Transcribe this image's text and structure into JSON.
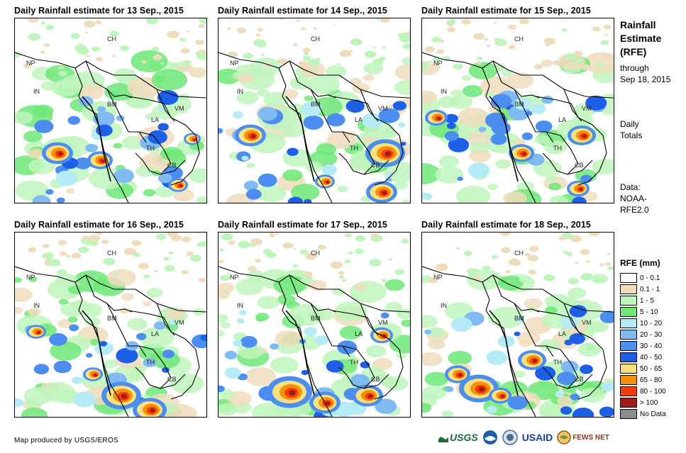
{
  "panels": [
    {
      "title": "Daily Rainfall estimate for 13 Sep., 2015"
    },
    {
      "title": "Daily Rainfall estimate for 14 Sep., 2015"
    },
    {
      "title": "Daily Rainfall estimate for 15 Sep., 2015"
    },
    {
      "title": "Daily Rainfall estimate for 16 Sep., 2015"
    },
    {
      "title": "Daily Rainfall estimate for 17 Sep., 2015"
    },
    {
      "title": "Daily Rainfall estimate for 18 Sep., 2015"
    }
  ],
  "country_labels": [
    "CH",
    "NP",
    "IN",
    "BM",
    "LA",
    "VM",
    "TH",
    "CB"
  ],
  "side": {
    "title_line1": "Rainfall",
    "title_line2": "Estimate",
    "title_line3": "(RFE)",
    "through_line1": "through",
    "through_line2": "Sep 18, 2015",
    "totals_line1": "Daily",
    "totals_line2": "Totals",
    "data_line1": "Data:",
    "data_line2": "NOAA-",
    "data_line3": "RFE2.0"
  },
  "legend": {
    "title": "RFE (mm)",
    "items": [
      {
        "label": "0 - 0.1",
        "color": "#ffffff"
      },
      {
        "label": "0.1 - 1",
        "color": "#eedcbc"
      },
      {
        "label": "1 - 5",
        "color": "#bff5bc"
      },
      {
        "label": "5 - 10",
        "color": "#6fe878"
      },
      {
        "label": "10 - 20",
        "color": "#b5ebf7"
      },
      {
        "label": "20 - 30",
        "color": "#7fbbf2"
      },
      {
        "label": "30 - 40",
        "color": "#4c8ef0"
      },
      {
        "label": "40 - 50",
        "color": "#1d5fe6"
      },
      {
        "label": "50 - 65",
        "color": "#f9e27d"
      },
      {
        "label": "65 - 80",
        "color": "#f5900b"
      },
      {
        "label": "80 - 100",
        "color": "#f53a0b"
      },
      {
        "label": "> 100",
        "color": "#a01c1c"
      },
      {
        "label": "No Data",
        "color": "#8c8c8c"
      }
    ]
  },
  "footer": {
    "credit": "Map produced by USGS/EROS",
    "logo_usgs": "USGS",
    "logo_usaid": "USAID",
    "logo_fewsnet": "FEWS NET"
  }
}
